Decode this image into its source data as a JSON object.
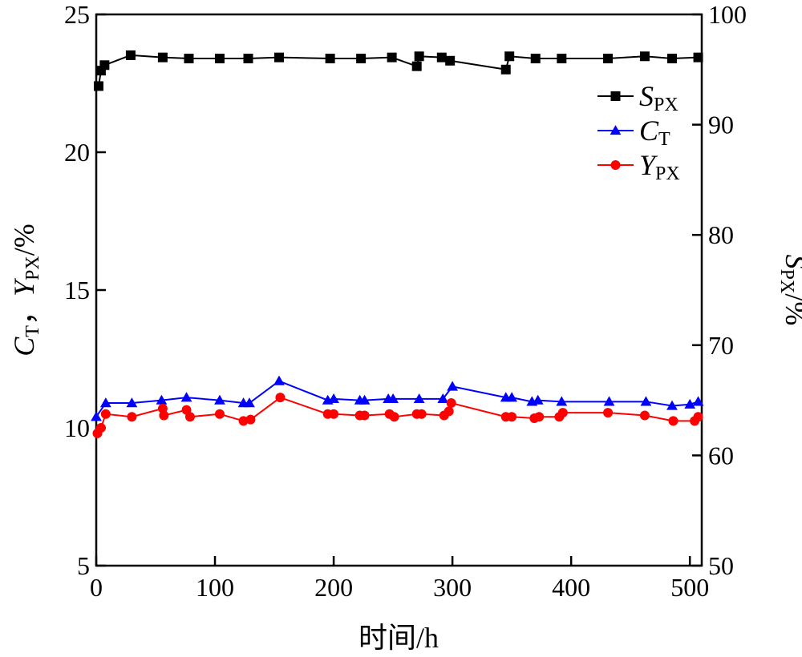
{
  "chart_data": {
    "type": "line",
    "xlabel": "时间/h",
    "ylabel_left": {
      "parts": [
        {
          "t": "C",
          "i": true
        },
        {
          "t": "T",
          "sub": true
        },
        {
          "t": "，"
        },
        {
          "t": "Y",
          "i": true
        },
        {
          "t": "PX",
          "sub": true
        },
        {
          "t": "/%"
        }
      ]
    },
    "ylabel_right": {
      "parts": [
        {
          "t": "S",
          "i": true
        },
        {
          "t": "PX",
          "sub": true
        },
        {
          "t": "/%"
        }
      ]
    },
    "xlim": [
      0,
      510
    ],
    "ylim_left": [
      5,
      25
    ],
    "ylim_right": [
      50,
      100
    ],
    "x_ticks": [
      0,
      100,
      200,
      300,
      400,
      500
    ],
    "y_left_ticks": [
      5,
      10,
      15,
      20,
      25
    ],
    "y_right_ticks": [
      50,
      60,
      70,
      80,
      90,
      100
    ],
    "grid": false,
    "legend_position": "top-right",
    "series": [
      {
        "name": "S",
        "name_sub": "PX",
        "axis": "right",
        "marker": "square",
        "color": "#000000",
        "points": [
          [
            2,
            93.5
          ],
          [
            4,
            94.9
          ],
          [
            7,
            95.4
          ],
          [
            29,
            96.3
          ],
          [
            56,
            96.1
          ],
          [
            78,
            96.0
          ],
          [
            104,
            96.0
          ],
          [
            128,
            96.0
          ],
          [
            154,
            96.1
          ],
          [
            197,
            96.0
          ],
          [
            223,
            96.0
          ],
          [
            249,
            96.1
          ],
          [
            270,
            95.3
          ],
          [
            272,
            96.2
          ],
          [
            291,
            96.1
          ],
          [
            298,
            95.8
          ],
          [
            345,
            95.0
          ],
          [
            348,
            96.2
          ],
          [
            370,
            96.0
          ],
          [
            392,
            96.0
          ],
          [
            431,
            96.0
          ],
          [
            462,
            96.2
          ],
          [
            485,
            96.0
          ],
          [
            507,
            96.1
          ]
        ]
      },
      {
        "name": "C",
        "name_sub": "T",
        "axis": "left",
        "marker": "triangle",
        "color": "#0000ff",
        "points": [
          [
            0,
            10.4
          ],
          [
            8,
            10.9
          ],
          [
            30,
            10.9
          ],
          [
            55,
            11.0
          ],
          [
            76,
            11.1
          ],
          [
            104,
            11.0
          ],
          [
            124,
            10.9
          ],
          [
            129,
            10.9
          ],
          [
            154,
            11.7
          ],
          [
            195,
            11.0
          ],
          [
            200,
            11.05
          ],
          [
            222,
            11.0
          ],
          [
            226,
            11.0
          ],
          [
            246,
            11.05
          ],
          [
            250,
            11.05
          ],
          [
            272,
            11.05
          ],
          [
            292,
            11.05
          ],
          [
            300,
            11.5
          ],
          [
            345,
            11.1
          ],
          [
            350,
            11.1
          ],
          [
            367,
            10.95
          ],
          [
            372,
            11.0
          ],
          [
            392,
            10.95
          ],
          [
            432,
            10.95
          ],
          [
            463,
            10.95
          ],
          [
            485,
            10.8
          ],
          [
            500,
            10.85
          ],
          [
            507,
            10.95
          ]
        ]
      },
      {
        "name": "Y",
        "name_sub": "PX",
        "axis": "left",
        "marker": "circle",
        "color": "#ff0000",
        "points": [
          [
            1,
            9.8
          ],
          [
            4,
            10.0
          ],
          [
            8,
            10.5
          ],
          [
            30,
            10.4
          ],
          [
            56,
            10.7
          ],
          [
            57,
            10.45
          ],
          [
            76,
            10.65
          ],
          [
            79,
            10.4
          ],
          [
            104,
            10.5
          ],
          [
            124,
            10.25
          ],
          [
            130,
            10.3
          ],
          [
            155,
            11.1
          ],
          [
            195,
            10.5
          ],
          [
            200,
            10.5
          ],
          [
            222,
            10.45
          ],
          [
            226,
            10.45
          ],
          [
            247,
            10.5
          ],
          [
            251,
            10.4
          ],
          [
            270,
            10.5
          ],
          [
            274,
            10.5
          ],
          [
            293,
            10.45
          ],
          [
            297,
            10.6
          ],
          [
            299,
            10.9
          ],
          [
            345,
            10.4
          ],
          [
            350,
            10.4
          ],
          [
            369,
            10.35
          ],
          [
            373,
            10.4
          ],
          [
            390,
            10.4
          ],
          [
            393,
            10.55
          ],
          [
            431,
            10.55
          ],
          [
            462,
            10.45
          ],
          [
            486,
            10.25
          ],
          [
            504,
            10.25
          ],
          [
            507,
            10.4
          ]
        ]
      }
    ]
  }
}
